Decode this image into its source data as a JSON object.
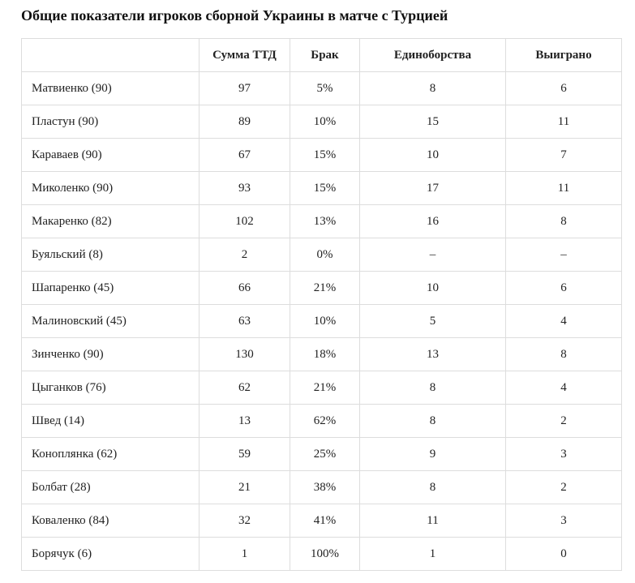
{
  "page": {
    "title": "Общие показатели игроков сборной Украины в матче с Турцией"
  },
  "table": {
    "columns": [
      "",
      "Сумма ТТД",
      "Брак",
      "Единоборства",
      "Выиграно"
    ],
    "rows": [
      [
        "Матвиенко (90)",
        "97",
        "5%",
        "8",
        "6"
      ],
      [
        "Пластун (90)",
        "89",
        "10%",
        "15",
        "11"
      ],
      [
        "Караваев (90)",
        "67",
        "15%",
        "10",
        "7"
      ],
      [
        "Миколенко (90)",
        "93",
        "15%",
        "17",
        "11"
      ],
      [
        "Макаренко (82)",
        "102",
        "13%",
        "16",
        "8"
      ],
      [
        "Буяльский (8)",
        "2",
        "0%",
        "–",
        "–"
      ],
      [
        "Шапаренко (45)",
        "66",
        "21%",
        "10",
        "6"
      ],
      [
        "Малиновский (45)",
        "63",
        "10%",
        "5",
        "4"
      ],
      [
        "Зинченко (90)",
        "130",
        "18%",
        "13",
        "8"
      ],
      [
        "Цыганков (76)",
        "62",
        "21%",
        "8",
        "4"
      ],
      [
        "Швед (14)",
        "13",
        "62%",
        "8",
        "2"
      ],
      [
        "Коноплянка (62)",
        "59",
        "25%",
        "9",
        "3"
      ],
      [
        "Болбат (28)",
        "21",
        "38%",
        "8",
        "2"
      ],
      [
        "Коваленко (84)",
        "32",
        "41%",
        "11",
        "3"
      ],
      [
        "Борячук (6)",
        "1",
        "100%",
        "1",
        "0"
      ]
    ]
  },
  "colors": {
    "border": "#dddddd",
    "text": "#222222",
    "title": "#111111",
    "background": "#ffffff"
  }
}
